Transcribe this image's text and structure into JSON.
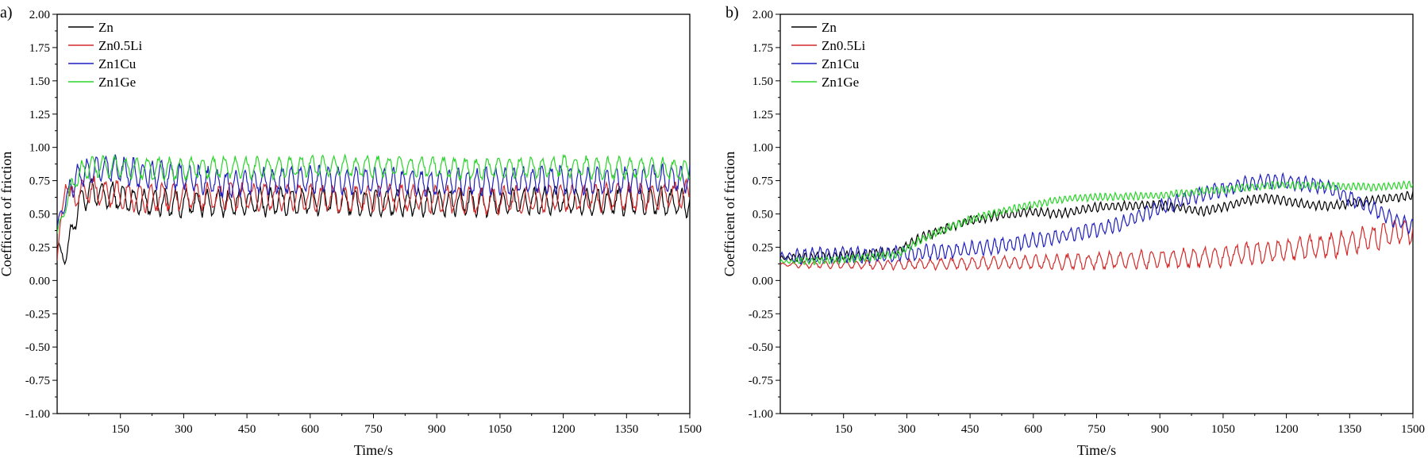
{
  "chart_data": [
    {
      "type": "line",
      "panel_label": "a)",
      "xlabel": "Time/s",
      "ylabel": "Coefficient of friction",
      "xlim": [
        0,
        1500
      ],
      "ylim": [
        -1.0,
        2.0
      ],
      "xticks": [
        150,
        300,
        450,
        600,
        750,
        900,
        1050,
        1200,
        1350,
        1500
      ],
      "yticks": [
        "2.00",
        "1.75",
        "1.50",
        "1.25",
        "1.00",
        "0.75",
        "0.50",
        "0.25",
        "0.00",
        "-0.25",
        "-0.50",
        "-0.75",
        "-1.00"
      ],
      "legend": "top-left",
      "grid": false,
      "series": [
        {
          "name": "Zn",
          "color": "#000000",
          "x": [
            0,
            10,
            20,
            30,
            40,
            50,
            60,
            80,
            100,
            150,
            200,
            300,
            400,
            500,
            600,
            700,
            800,
            900,
            1000,
            1100,
            1200,
            1300,
            1400,
            1500
          ],
          "y": [
            0.25,
            0.2,
            0.17,
            0.3,
            0.45,
            0.55,
            0.62,
            0.66,
            0.65,
            0.62,
            0.59,
            0.58,
            0.58,
            0.59,
            0.6,
            0.59,
            0.58,
            0.59,
            0.58,
            0.59,
            0.6,
            0.59,
            0.6,
            0.58
          ],
          "amp": 0.09,
          "period": 25
        },
        {
          "name": "Zn0.5Li",
          "color": "#d42a2a",
          "x": [
            0,
            10,
            20,
            30,
            40,
            60,
            80,
            100,
            150,
            200,
            300,
            400,
            500,
            600,
            700,
            800,
            900,
            1000,
            1100,
            1200,
            1300,
            1400,
            1500
          ],
          "y": [
            0.15,
            0.45,
            0.78,
            0.6,
            0.65,
            0.68,
            0.68,
            0.66,
            0.64,
            0.62,
            0.63,
            0.63,
            0.63,
            0.62,
            0.61,
            0.62,
            0.61,
            0.6,
            0.61,
            0.62,
            0.62,
            0.63,
            0.65
          ],
          "amp": 0.09,
          "period": 27
        },
        {
          "name": "Zn1Cu",
          "color": "#1f1fbf",
          "x": [
            0,
            10,
            20,
            30,
            40,
            60,
            80,
            100,
            150,
            200,
            300,
            400,
            500,
            600,
            700,
            800,
            900,
            1000,
            1100,
            1200,
            1300,
            1400,
            1500
          ],
          "y": [
            0.4,
            0.5,
            0.6,
            0.68,
            0.75,
            0.8,
            0.82,
            0.85,
            0.83,
            0.8,
            0.78,
            0.72,
            0.75,
            0.76,
            0.75,
            0.74,
            0.73,
            0.74,
            0.75,
            0.76,
            0.75,
            0.76,
            0.76
          ],
          "amp": 0.09,
          "period": 22
        },
        {
          "name": "Zn1Ge",
          "color": "#2ad42a",
          "x": [
            0,
            20,
            40,
            60,
            80,
            100,
            150,
            200,
            300,
            400,
            500,
            600,
            700,
            800,
            900,
            1000,
            1100,
            1200,
            1300,
            1400,
            1500
          ],
          "y": [
            0.35,
            0.55,
            0.75,
            0.82,
            0.85,
            0.86,
            0.85,
            0.84,
            0.84,
            0.85,
            0.84,
            0.86,
            0.85,
            0.86,
            0.85,
            0.84,
            0.85,
            0.86,
            0.84,
            0.85,
            0.82
          ],
          "amp": 0.07,
          "period": 26
        }
      ]
    },
    {
      "type": "line",
      "panel_label": "b)",
      "xlabel": "Time/s",
      "ylabel": "Coefficient of friction",
      "xlim": [
        0,
        1500
      ],
      "ylim": [
        -1.0,
        2.0
      ],
      "xticks": [
        150,
        300,
        450,
        600,
        750,
        900,
        1050,
        1200,
        1350,
        1500
      ],
      "yticks": [
        "2.00",
        "1.75",
        "1.50",
        "1.25",
        "1.00",
        "0.75",
        "0.50",
        "0.25",
        "0.00",
        "-0.25",
        "-0.50",
        "-0.75",
        "-1.00"
      ],
      "legend": "top-left",
      "grid": false,
      "series": [
        {
          "name": "Zn",
          "color": "#000000",
          "x": [
            0,
            100,
            200,
            280,
            330,
            400,
            450,
            500,
            550,
            600,
            650,
            700,
            750,
            800,
            900,
            1000,
            1050,
            1100,
            1150,
            1200,
            1250,
            1300,
            1350,
            1400,
            1450,
            1500
          ],
          "y": [
            0.17,
            0.18,
            0.19,
            0.22,
            0.32,
            0.4,
            0.45,
            0.48,
            0.5,
            0.52,
            0.5,
            0.52,
            0.55,
            0.56,
            0.57,
            0.52,
            0.55,
            0.6,
            0.62,
            0.6,
            0.57,
            0.56,
            0.58,
            0.6,
            0.62,
            0.64
          ],
          "amp": 0.03,
          "period": 14
        },
        {
          "name": "Zn0.5Li",
          "color": "#d42a2a",
          "x": [
            0,
            100,
            300,
            500,
            700,
            900,
            1000,
            1100,
            1200,
            1300,
            1400,
            1450,
            1500
          ],
          "y": [
            0.12,
            0.12,
            0.12,
            0.13,
            0.14,
            0.16,
            0.17,
            0.2,
            0.23,
            0.26,
            0.32,
            0.35,
            0.38
          ],
          "amp_start": 0.02,
          "amp_end": 0.09,
          "period": 25
        },
        {
          "name": "Zn1Cu",
          "color": "#1f1fbf",
          "x": [
            0,
            100,
            200,
            300,
            400,
            500,
            600,
            700,
            800,
            900,
            1000,
            1100,
            1150,
            1200,
            1250,
            1300,
            1350,
            1400,
            1450,
            1500
          ],
          "y": [
            0.18,
            0.19,
            0.19,
            0.2,
            0.22,
            0.25,
            0.3,
            0.35,
            0.42,
            0.55,
            0.65,
            0.72,
            0.75,
            0.74,
            0.73,
            0.7,
            0.62,
            0.55,
            0.46,
            0.4
          ],
          "amp": 0.05,
          "period": 18
        },
        {
          "name": "Zn1Ge",
          "color": "#2ad42a",
          "x": [
            0,
            100,
            200,
            280,
            330,
            400,
            450,
            500,
            550,
            600,
            650,
            700,
            800,
            900,
            1000,
            1100,
            1200,
            1300,
            1400,
            1500
          ],
          "y": [
            0.14,
            0.15,
            0.17,
            0.2,
            0.3,
            0.4,
            0.46,
            0.5,
            0.54,
            0.57,
            0.6,
            0.62,
            0.63,
            0.64,
            0.67,
            0.7,
            0.72,
            0.71,
            0.7,
            0.72
          ],
          "amp": 0.025,
          "period": 12
        }
      ]
    }
  ]
}
